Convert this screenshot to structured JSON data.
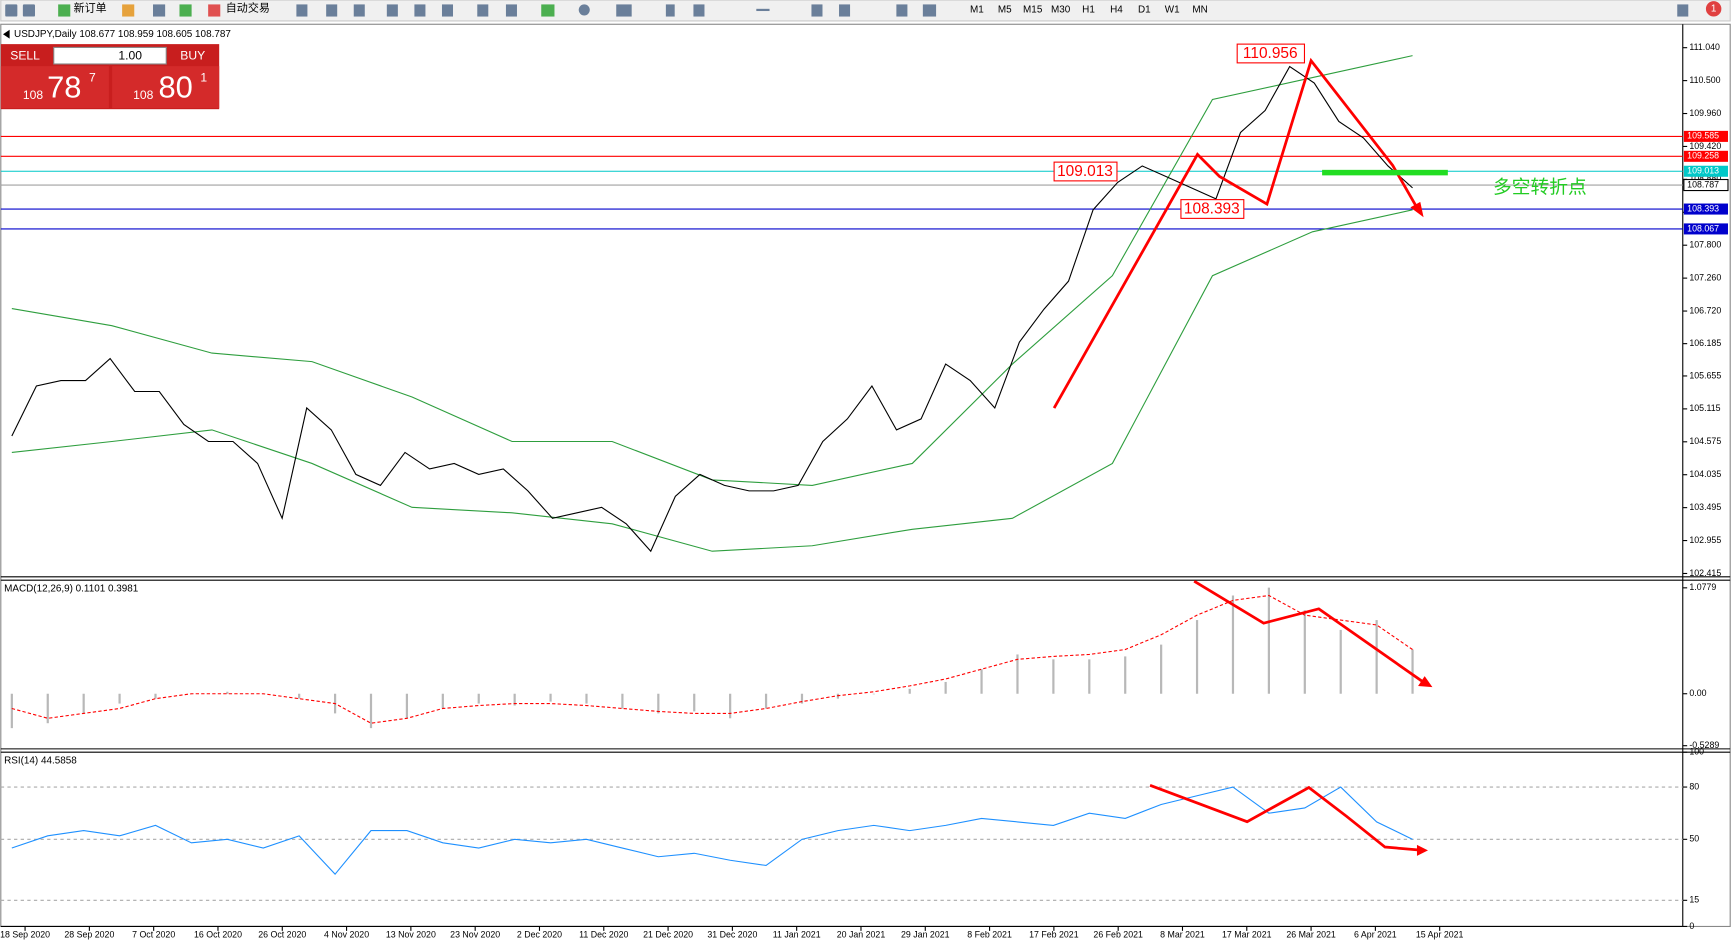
{
  "toolbar": {
    "new_order": "新订单",
    "auto_trade": "自动交易",
    "timeframes": [
      "M1",
      "M5",
      "M15",
      "M30",
      "H1",
      "H4",
      "D1",
      "W1",
      "MN"
    ],
    "notifications": "1"
  },
  "trade_panel": {
    "sell": "SELL",
    "lots": "1.00",
    "buy": "BUY",
    "sell_big": "108",
    "sell_pips": "78",
    "sell_frac": "7",
    "buy_big": "108",
    "buy_pips": "80",
    "buy_frac": "1"
  },
  "annotations": {
    "high": "110.956",
    "left_level": "109.013",
    "low": "108.393",
    "turning_point": "多空转折点"
  },
  "chart_data": [
    {
      "type": "line",
      "title": "USDJPY,Daily  108.677 108.959 108.605 108.787",
      "x_labels": [
        "18 Sep 2020",
        "28 Sep 2020",
        "7 Oct 2020",
        "16 Oct 2020",
        "26 Oct 2020",
        "4 Nov 2020",
        "13 Nov 2020",
        "23 Nov 2020",
        "2 Dec 2020",
        "11 Dec 2020",
        "21 Dec 2020",
        "31 Dec 2020",
        "11 Jan 2021",
        "20 Jan 2021",
        "29 Jan 2021",
        "8 Feb 2021",
        "17 Feb 2021",
        "26 Feb 2021",
        "8 Mar 2021",
        "17 Mar 2021",
        "26 Mar 2021",
        "6 Apr 2021",
        "15 Apr 2021"
      ],
      "ylim": [
        102.36,
        111.37
      ],
      "yticks": [
        {
          "value": 111.04,
          "label": "111.040"
        },
        {
          "value": 110.5,
          "label": "110.500"
        },
        {
          "value": 109.96,
          "label": "109.960"
        },
        {
          "value": 109.42,
          "label": "109.420"
        },
        {
          "value": 108.88,
          "label": "108.880"
        },
        {
          "value": 108.34,
          "label": "108.340"
        },
        {
          "value": 107.8,
          "label": "107.800"
        },
        {
          "value": 107.26,
          "label": "107.260"
        },
        {
          "value": 106.72,
          "label": "106.720"
        },
        106.185,
        105.655,
        105.115,
        104.575,
        104.035,
        103.495,
        102.955,
        102.415
      ],
      "levels": [
        {
          "value": 109.585,
          "color": "#ff0000"
        },
        {
          "value": 109.258,
          "color": "#ff0000"
        },
        {
          "value": 109.013,
          "color": "#00c8c8"
        },
        {
          "value": 108.787,
          "color": "#a0a0a0"
        },
        {
          "value": 108.393,
          "color": "#0000cc"
        },
        {
          "value": 108.067,
          "color": "#0000cc"
        }
      ],
      "series": [
        {
          "color": "#2e9e3e",
          "mark": "line",
          "values": [
            106.76,
            106.48,
            106.03,
            105.89,
            105.31,
            104.58,
            104.58,
            103.95,
            103.86,
            104.22,
            105.85,
            107.3,
            110.19,
            110.55,
            110.91
          ]
        },
        {
          "color": "#2e9e3e",
          "mark": "line",
          "values": [
            104.4,
            104.58,
            104.77,
            104.22,
            103.5,
            103.41,
            103.23,
            102.78,
            102.87,
            103.14,
            103.32,
            104.22,
            107.3,
            108.02,
            108.38
          ]
        },
        {
          "color": "#000000",
          "mark": "line",
          "values": [
            104.67,
            105.49,
            105.58,
            105.58,
            105.94,
            105.4,
            105.4,
            104.86,
            104.58,
            104.58,
            104.22,
            103.32,
            105.13,
            104.77,
            104.04,
            103.86,
            104.4,
            104.13,
            104.22,
            104.04,
            104.13,
            103.77,
            103.32,
            103.41,
            103.5,
            103.23,
            102.78,
            103.68,
            104.04,
            103.86,
            103.77,
            103.77,
            103.86,
            104.58,
            104.95,
            105.49,
            104.77,
            104.95,
            105.85,
            105.58,
            105.13,
            106.21,
            106.75,
            107.21,
            108.38,
            108.83,
            109.1,
            108.92,
            108.74,
            108.56,
            109.65,
            110.01,
            110.73,
            110.46,
            109.83,
            109.56,
            109.1,
            108.74
          ]
        }
      ]
    },
    {
      "type": "bar",
      "title": "MACD(12,26,9) 0.1101 0.3981",
      "ylim": [
        -0.55,
        1.145
      ],
      "yticks": [
        1.0779,
        {
          "value": 0,
          "label": "0.00"
        },
        -0.5289
      ],
      "series": [
        {
          "color": "#b8b8b8",
          "mark": "bar",
          "values": [
            -0.35,
            -0.3,
            -0.2,
            -0.1,
            -0.05,
            0.0,
            0.02,
            0.0,
            -0.05,
            -0.2,
            -0.35,
            -0.25,
            -0.15,
            -0.1,
            -0.12,
            -0.08,
            -0.1,
            -0.15,
            -0.2,
            -0.18,
            -0.25,
            -0.15,
            -0.1,
            -0.05,
            0.0,
            0.05,
            0.12,
            0.25,
            0.4,
            0.35,
            0.35,
            0.38,
            0.5,
            0.75,
            1.0,
            1.08,
            0.85,
            0.65,
            0.75,
            0.45
          ]
        },
        {
          "color": "#ff0000",
          "mark": "line",
          "dash": true,
          "values": [
            -0.15,
            -0.25,
            -0.2,
            -0.15,
            -0.05,
            0.0,
            0.0,
            0.0,
            -0.05,
            -0.1,
            -0.3,
            -0.25,
            -0.15,
            -0.12,
            -0.1,
            -0.1,
            -0.12,
            -0.15,
            -0.18,
            -0.2,
            -0.2,
            -0.15,
            -0.08,
            -0.02,
            0.02,
            0.08,
            0.15,
            0.25,
            0.35,
            0.38,
            0.4,
            0.45,
            0.6,
            0.8,
            0.95,
            1.0,
            0.8,
            0.75,
            0.7,
            0.45
          ]
        }
      ]
    },
    {
      "type": "line",
      "title": "RSI(14) 44.5858",
      "ylim": [
        0,
        100
      ],
      "yticks": [
        100,
        80,
        50,
        15,
        0
      ],
      "series": [
        {
          "color": "#1e90ff",
          "mark": "line",
          "values": [
            45,
            52,
            55,
            52,
            58,
            48,
            50,
            45,
            52,
            30,
            55,
            55,
            48,
            45,
            50,
            48,
            50,
            45,
            40,
            42,
            38,
            35,
            50,
            55,
            58,
            55,
            58,
            62,
            60,
            58,
            65,
            62,
            70,
            75,
            80,
            65,
            68,
            80,
            60,
            50
          ]
        }
      ]
    }
  ]
}
